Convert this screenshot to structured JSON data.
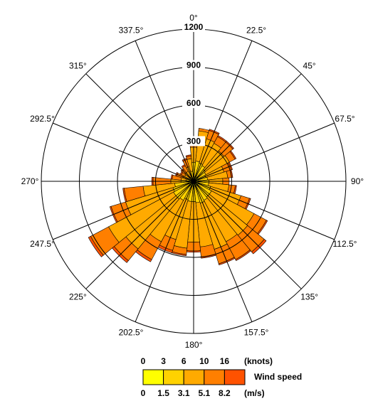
{
  "chart_data": {
    "type": "wind-rose",
    "title": "",
    "directions": [
      "0°",
      "22.5°",
      "45°",
      "67.5°",
      "90°",
      "112.5°",
      "135°",
      "157.5°",
      "180°",
      "202.5°",
      "225°",
      "247.5°",
      "270°",
      "292.5°",
      "315°",
      "337.5°"
    ],
    "sector_angles_deg": [
      0,
      11.25,
      22.5,
      33.75,
      45,
      56.25,
      67.5,
      78.75,
      90,
      101.25,
      112.5,
      123.75,
      135,
      146.25,
      157.5,
      168.75,
      180,
      191.25,
      202.5,
      213.75,
      225,
      236.25,
      247.5,
      258.75,
      270,
      281.25,
      292.5,
      303.75,
      315,
      326.25,
      337.5,
      348.75
    ],
    "radial_axis": {
      "ticks": [
        300,
        600,
        900,
        1200
      ],
      "max": 1200
    },
    "speed_bins": {
      "knots_labels": [
        "0",
        "3",
        "6",
        "10",
        "16"
      ],
      "knots_unit": "(knots)",
      "ms_labels": [
        "0",
        "1.5",
        "3.1",
        "5.1",
        "8.2"
      ],
      "ms_unit": "(m/s)",
      "legend_title": "Wind speed",
      "colors": [
        "#ffff00",
        "#ffd200",
        "#ffaa00",
        "#ff7f00",
        "#ff5200",
        "#ff1e00"
      ]
    },
    "series_cumulative": [
      [
        35,
        150,
        270,
        280,
        280,
        280
      ],
      [
        35,
        160,
        400,
        420,
        420,
        420
      ],
      [
        40,
        150,
        350,
        420,
        430,
        430
      ],
      [
        40,
        140,
        340,
        400,
        410,
        410
      ],
      [
        40,
        120,
        310,
        400,
        410,
        410
      ],
      [
        40,
        110,
        320,
        370,
        380,
        380
      ],
      [
        40,
        100,
        250,
        310,
        320,
        320
      ],
      [
        40,
        110,
        270,
        300,
        310,
        310
      ],
      [
        40,
        120,
        230,
        280,
        280,
        280
      ],
      [
        40,
        120,
        280,
        330,
        340,
        340
      ],
      [
        40,
        140,
        390,
        460,
        470,
        470
      ],
      [
        40,
        160,
        540,
        650,
        660,
        660
      ],
      [
        40,
        160,
        550,
        720,
        740,
        740
      ],
      [
        40,
        170,
        540,
        700,
        710,
        710
      ],
      [
        40,
        180,
        560,
        680,
        690,
        690
      ],
      [
        40,
        170,
        520,
        600,
        610,
        610
      ],
      [
        40,
        160,
        480,
        550,
        560,
        560
      ],
      [
        40,
        160,
        530,
        580,
        590,
        590
      ],
      [
        40,
        150,
        480,
        570,
        590,
        590
      ],
      [
        40,
        170,
        540,
        700,
        720,
        720
      ],
      [
        40,
        180,
        690,
        810,
        830,
        830
      ],
      [
        40,
        180,
        760,
        920,
        940,
        940
      ],
      [
        40,
        170,
        560,
        680,
        690,
        690
      ],
      [
        40,
        150,
        400,
        550,
        560,
        560
      ],
      [
        40,
        100,
        180,
        320,
        330,
        330
      ],
      [
        30,
        60,
        100,
        170,
        180,
        180
      ],
      [
        25,
        50,
        90,
        140,
        150,
        150
      ],
      [
        20,
        40,
        80,
        110,
        120,
        120
      ],
      [
        20,
        40,
        90,
        120,
        130,
        130
      ],
      [
        20,
        40,
        90,
        140,
        150,
        150
      ],
      [
        20,
        60,
        120,
        180,
        190,
        190
      ],
      [
        25,
        80,
        180,
        200,
        210,
        210
      ]
    ]
  }
}
